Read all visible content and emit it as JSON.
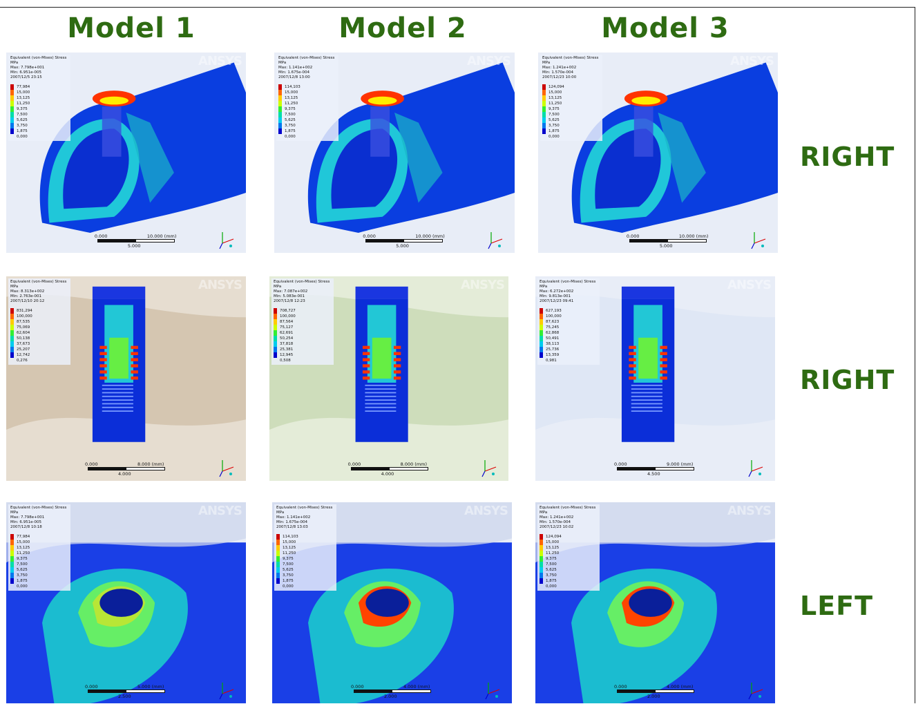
{
  "columns": [
    "Model 1",
    "Model 2",
    "Model 3"
  ],
  "rows": [
    "RIGHT",
    "RIGHT",
    "LEFT"
  ],
  "watermark": "ANSYS",
  "legend_colors": [
    "#cc0000",
    "#ff6600",
    "#ffcc00",
    "#ccff00",
    "#33ee33",
    "#00ddaa",
    "#00ccee",
    "#0077ee",
    "#0000cc"
  ],
  "panels": [
    {
      "title": "Equivalent (von-Mises) Stress",
      "unit": "MPa",
      "max": "Max: 7.798e+001",
      "min": "Min: 6.951e-005",
      "date": "2007/12/5 23:15",
      "values": [
        "77,984",
        "15,000",
        "13,125",
        "11,250",
        "9,375",
        "7,500",
        "5,625",
        "3,750",
        "1,875",
        "0,000"
      ],
      "scale": {
        "zero": "0.000",
        "max": "10.000 (mm)",
        "mid": "5.000"
      }
    },
    {
      "title": "Equivalent (von-Mises) Stress",
      "unit": "MPa",
      "max": "Max: 1.141e+002",
      "min": "Min: 1.675e-004",
      "date": "2007/12/8 13:00",
      "values": [
        "114,103",
        "15,000",
        "13,125",
        "11,250",
        "9,375",
        "7,500",
        "5,625",
        "3,750",
        "1,875",
        "0,000"
      ],
      "scale": {
        "zero": "0.000",
        "max": "10.000 (mm)",
        "mid": "5.000"
      }
    },
    {
      "title": "Equivalent (von-Mises) Stress",
      "unit": "MPa",
      "max": "Max: 1.241e+002",
      "min": "Min: 1.570e-004",
      "date": "2007/12/23 10:00",
      "values": [
        "124,094",
        "15,000",
        "13,125",
        "11,250",
        "9,375",
        "7,500",
        "5,625",
        "3,750",
        "1,875",
        "0,000"
      ],
      "scale": {
        "zero": "0.000",
        "max": "10.000 (mm)",
        "mid": "5.000"
      }
    },
    {
      "title": "Equivalent (von-Mises) Stress",
      "unit": "MPa",
      "max": "Max: 8.313e+002",
      "min": "Min: 2.763e-001",
      "date": "2007/12/10 20:12",
      "values": [
        "831,294",
        "100,000",
        "87,535",
        "75,069",
        "62,604",
        "50,138",
        "37,673",
        "25,207",
        "12,742",
        "0,276"
      ],
      "scale": {
        "zero": "0.000",
        "max": "8.000 (mm)",
        "mid": "4.000"
      }
    },
    {
      "title": "Equivalent (von-Mises) Stress",
      "unit": "MPa",
      "max": "Max: 7.087e+002",
      "min": "Min: 5.083e-001",
      "date": "2007/12/8 12:23",
      "values": [
        "708,727",
        "100,000",
        "87,564",
        "75,127",
        "62,691",
        "50,254",
        "37,818",
        "25,381",
        "12,945",
        "0,508"
      ],
      "scale": {
        "zero": "0.000",
        "max": "8.000 (mm)",
        "mid": "4.000"
      }
    },
    {
      "title": "Equivalent (von-Mises) Stress",
      "unit": "MPa",
      "max": "Max: 6.272e+002",
      "min": "Min: 9.813e-001",
      "date": "2007/12/23 09:41",
      "values": [
        "627,193",
        "100,000",
        "87,623",
        "75,245",
        "62,868",
        "50,491",
        "38,113",
        "25,736",
        "13,359",
        "0,981"
      ],
      "scale": {
        "zero": "0.000",
        "max": "9.000 (mm)",
        "mid": "4.500"
      }
    },
    {
      "title": "Equivalent (von-Mises) Stress",
      "unit": "MPa",
      "max": "Max: 7.798e+001",
      "min": "Min: 6.951e-005",
      "date": "2007/12/8 10:18",
      "values": [
        "77,984",
        "15,000",
        "13,125",
        "11,250",
        "9,375",
        "7,500",
        "5,625",
        "3,750",
        "1,875",
        "0,000"
      ],
      "scale": {
        "zero": "0.000",
        "max": "5.000 (mm)",
        "mid": "2.500"
      }
    },
    {
      "title": "Equivalent (von-Mises) Stress",
      "unit": "MPa",
      "max": "Max: 1.141e+002",
      "min": "Min: 1.675e-004",
      "date": "2007/12/8 13:03",
      "values": [
        "114,103",
        "15,000",
        "13,125",
        "11,250",
        "9,375",
        "7,500",
        "5,625",
        "3,750",
        "1,875",
        "0,000"
      ],
      "scale": {
        "zero": "0.000",
        "max": "4.000 (mm)",
        "mid": "2.000"
      }
    },
    {
      "title": "Equivalent (von-Mises) Stress",
      "unit": "MPa",
      "max": "Max: 1.241e+002",
      "min": "Min: 1.570e-004",
      "date": "2007/12/23 10:02",
      "values": [
        "124,094",
        "15,000",
        "13,125",
        "11,250",
        "9,375",
        "7,500",
        "5,625",
        "3,750",
        "1,875",
        "0,000"
      ],
      "scale": {
        "zero": "0.000",
        "max": "4.000 (mm)",
        "mid": "2.000"
      }
    }
  ]
}
